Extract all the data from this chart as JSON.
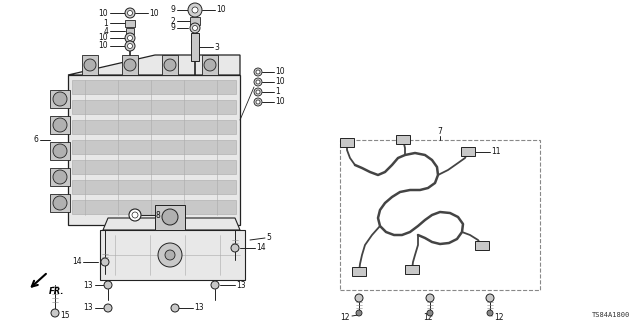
{
  "bg_color": "#ffffff",
  "diagram_code": "TS84A1800",
  "fig_width": 6.4,
  "fig_height": 3.2,
  "dpi": 100,
  "line_color": "#222222",
  "part_gray": "#c8c8c8",
  "part_light": "#e8e8e8",
  "part_dark": "#888888"
}
